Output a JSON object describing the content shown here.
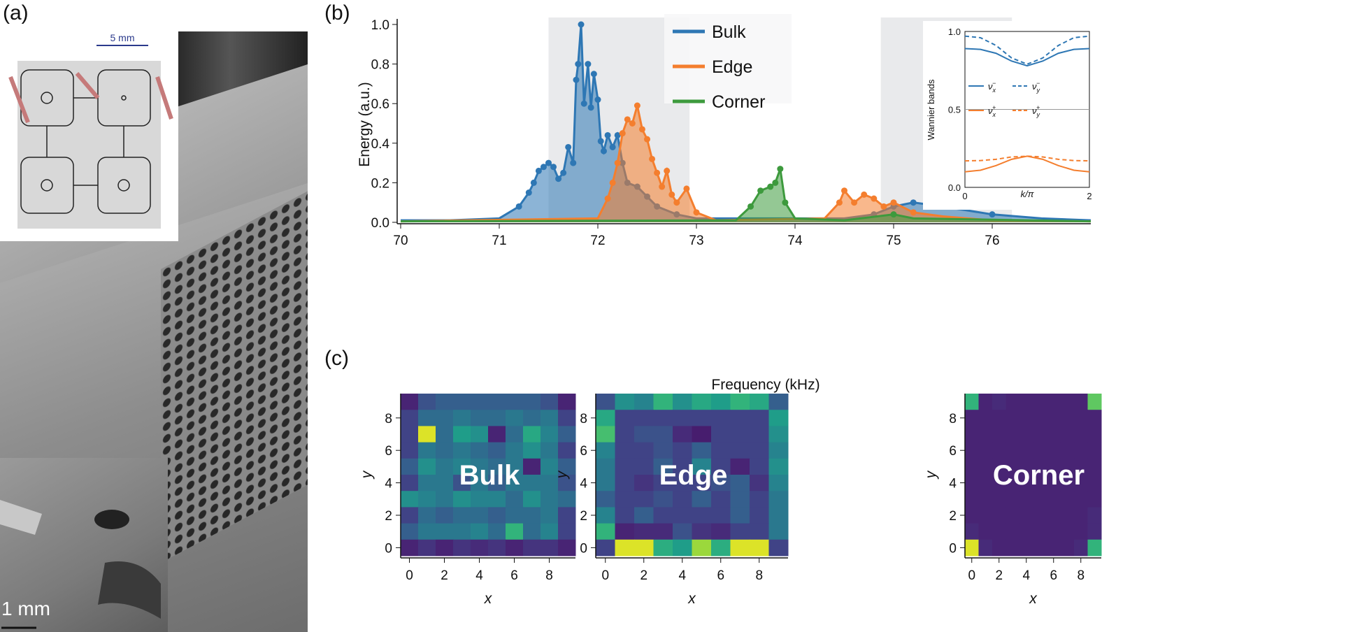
{
  "panels": {
    "a": {
      "label": "(a)",
      "scale_top": "5 mm",
      "scale_bottom": "1 mm"
    },
    "b": {
      "label": "(b)"
    },
    "c": {
      "label": "(c)"
    }
  },
  "colors": {
    "bulk": "#2e77b4",
    "edge": "#f47e2e",
    "corner": "#3d9a3d",
    "band_shade": "#e9eaec"
  },
  "chart_data": [
    {
      "type": "area",
      "xlabel": "Frequency (kHz)",
      "ylabel": "Energy (a.u.)",
      "xlim": [
        70,
        77
      ],
      "ylim": [
        0,
        1.0
      ],
      "xticks": [
        70,
        71,
        72,
        73,
        74,
        75,
        76
      ],
      "yticks": [
        0.0,
        0.2,
        0.4,
        0.6,
        0.8,
        1.0
      ],
      "shaded_bands": [
        [
          71.5,
          72.93
        ],
        [
          74.87,
          76.2
        ]
      ],
      "legend_placement": "top-center",
      "series": [
        {
          "name": "Bulk",
          "x": [
            70,
            70.5,
            71,
            71.2,
            71.3,
            71.35,
            71.4,
            71.45,
            71.5,
            71.55,
            71.6,
            71.65,
            71.7,
            71.75,
            71.78,
            71.8,
            71.83,
            71.86,
            71.9,
            71.93,
            71.96,
            72,
            72.03,
            72.06,
            72.1,
            72.15,
            72.2,
            72.25,
            72.3,
            72.4,
            72.5,
            72.6,
            72.8,
            73,
            74.5,
            74.8,
            75,
            75.2,
            75.5,
            76,
            76.5,
            77
          ],
          "y": [
            0.01,
            0.01,
            0.02,
            0.08,
            0.15,
            0.2,
            0.26,
            0.28,
            0.3,
            0.28,
            0.22,
            0.25,
            0.38,
            0.3,
            0.72,
            0.8,
            1.0,
            0.6,
            0.8,
            0.58,
            0.75,
            0.62,
            0.41,
            0.36,
            0.44,
            0.38,
            0.44,
            0.3,
            0.2,
            0.18,
            0.13,
            0.08,
            0.04,
            0.02,
            0.02,
            0.04,
            0.08,
            0.1,
            0.08,
            0.04,
            0.02,
            0.01
          ]
        },
        {
          "name": "Edge",
          "x": [
            70,
            72,
            72.1,
            72.15,
            72.2,
            72.25,
            72.3,
            72.35,
            72.4,
            72.45,
            72.5,
            72.55,
            72.6,
            72.65,
            72.7,
            72.75,
            72.8,
            72.9,
            73,
            73.2,
            74.3,
            74.45,
            74.5,
            74.6,
            74.7,
            74.8,
            74.9,
            75,
            75.2,
            75.5,
            76,
            77
          ],
          "y": [
            0.005,
            0.02,
            0.12,
            0.2,
            0.3,
            0.45,
            0.52,
            0.5,
            0.59,
            0.47,
            0.42,
            0.32,
            0.25,
            0.18,
            0.26,
            0.14,
            0.1,
            0.17,
            0.05,
            0.01,
            0.02,
            0.1,
            0.16,
            0.1,
            0.14,
            0.12,
            0.08,
            0.1,
            0.05,
            0.03,
            0.01,
            0.005
          ]
        },
        {
          "name": "Corner",
          "x": [
            70,
            73.4,
            73.55,
            73.65,
            73.75,
            73.8,
            73.85,
            73.9,
            74,
            74.5,
            75,
            75.2,
            77
          ],
          "y": [
            0.005,
            0.01,
            0.08,
            0.16,
            0.18,
            0.2,
            0.27,
            0.1,
            0.02,
            0.01,
            0.04,
            0.02,
            0.005
          ]
        }
      ]
    },
    {
      "type": "line",
      "ylabel": "Wannier bands",
      "xlabel": "k/π",
      "xlim": [
        0,
        2
      ],
      "ylim": [
        0,
        1
      ],
      "xticks": [
        "0",
        "2"
      ],
      "yticks": [
        "0.0",
        "0.5",
        "1.0"
      ],
      "reference_line": 0.5,
      "series": [
        {
          "name": "ν_x^−",
          "label_main": "ν",
          "sub": "x",
          "sup": "−",
          "color": "#2e77b4",
          "dash": false,
          "x": [
            0,
            0.25,
            0.5,
            0.75,
            1,
            1.25,
            1.5,
            1.75,
            2
          ],
          "y": [
            0.89,
            0.885,
            0.86,
            0.81,
            0.78,
            0.81,
            0.86,
            0.885,
            0.89
          ]
        },
        {
          "name": "ν_y^−",
          "label_main": "ν",
          "sub": "y",
          "sup": "−",
          "color": "#2e77b4",
          "dash": true,
          "x": [
            0,
            0.25,
            0.5,
            0.75,
            1,
            1.25,
            1.5,
            1.75,
            2
          ],
          "y": [
            0.97,
            0.96,
            0.91,
            0.83,
            0.79,
            0.83,
            0.91,
            0.96,
            0.97
          ]
        },
        {
          "name": "ν_x^+",
          "label_main": "ν",
          "sub": "x",
          "sup": "+",
          "color": "#f47e2e",
          "dash": false,
          "x": [
            0,
            0.25,
            0.5,
            0.75,
            1,
            1.25,
            1.5,
            1.75,
            2
          ],
          "y": [
            0.1,
            0.11,
            0.14,
            0.18,
            0.2,
            0.18,
            0.14,
            0.11,
            0.1
          ]
        },
        {
          "name": "ν_y^+",
          "label_main": "ν",
          "sub": "y",
          "sup": "+",
          "color": "#f47e2e",
          "dash": true,
          "x": [
            0,
            0.25,
            0.5,
            0.75,
            1,
            1.25,
            1.5,
            1.75,
            2
          ],
          "y": [
            0.17,
            0.172,
            0.18,
            0.195,
            0.2,
            0.195,
            0.18,
            0.172,
            0.17
          ]
        }
      ]
    },
    {
      "type": "heatmap",
      "title": "Bulk",
      "xlabel": "x",
      "ylabel": "y",
      "xticks": [
        0,
        2,
        4,
        6,
        8
      ],
      "yticks": [
        0,
        2,
        4,
        6,
        8
      ],
      "colormap": "viridis",
      "rows_top_to_bottom": [
        [
          0.1,
          0.25,
          0.3,
          0.3,
          0.3,
          0.3,
          0.3,
          0.3,
          0.25,
          0.1
        ],
        [
          0.2,
          0.35,
          0.35,
          0.4,
          0.35,
          0.35,
          0.4,
          0.35,
          0.4,
          0.2
        ],
        [
          0.2,
          0.95,
          0.35,
          0.55,
          0.5,
          0.1,
          0.35,
          0.6,
          0.45,
          0.3
        ],
        [
          0.2,
          0.4,
          0.35,
          0.4,
          0.35,
          0.3,
          0.4,
          0.5,
          0.4,
          0.2
        ],
        [
          0.3,
          0.5,
          0.4,
          0.45,
          0.4,
          0.35,
          0.4,
          0.1,
          0.45,
          0.3
        ],
        [
          0.2,
          0.4,
          0.4,
          0.25,
          0.4,
          0.3,
          0.4,
          0.4,
          0.4,
          0.25
        ],
        [
          0.5,
          0.45,
          0.4,
          0.5,
          0.45,
          0.45,
          0.35,
          0.5,
          0.4,
          0.35
        ],
        [
          0.2,
          0.35,
          0.3,
          0.35,
          0.35,
          0.3,
          0.35,
          0.35,
          0.4,
          0.2
        ],
        [
          0.3,
          0.4,
          0.4,
          0.4,
          0.45,
          0.35,
          0.65,
          0.35,
          0.45,
          0.2
        ],
        [
          0.1,
          0.15,
          0.1,
          0.15,
          0.12,
          0.15,
          0.1,
          0.15,
          0.15,
          0.1
        ]
      ]
    },
    {
      "type": "heatmap",
      "title": "Edge",
      "xlabel": "x",
      "ylabel": "y",
      "xticks": [
        0,
        2,
        4,
        6,
        8
      ],
      "yticks": [
        0,
        2,
        4,
        6,
        8
      ],
      "colormap": "viridis",
      "rows_top_to_bottom": [
        [
          0.25,
          0.5,
          0.45,
          0.65,
          0.5,
          0.6,
          0.55,
          0.65,
          0.6,
          0.3
        ],
        [
          0.6,
          0.2,
          0.2,
          0.2,
          0.2,
          0.2,
          0.2,
          0.2,
          0.2,
          0.55
        ],
        [
          0.7,
          0.2,
          0.25,
          0.25,
          0.12,
          0.08,
          0.2,
          0.2,
          0.2,
          0.5
        ],
        [
          0.45,
          0.2,
          0.2,
          0.25,
          0.2,
          0.3,
          0.2,
          0.2,
          0.2,
          0.45
        ],
        [
          0.4,
          0.2,
          0.2,
          0.3,
          0.2,
          0.45,
          0.2,
          0.1,
          0.2,
          0.5
        ],
        [
          0.4,
          0.2,
          0.15,
          0.2,
          0.2,
          0.2,
          0.25,
          0.3,
          0.15,
          0.45
        ],
        [
          0.3,
          0.2,
          0.2,
          0.25,
          0.2,
          0.3,
          0.2,
          0.3,
          0.2,
          0.4
        ],
        [
          0.45,
          0.2,
          0.3,
          0.2,
          0.2,
          0.2,
          0.2,
          0.3,
          0.2,
          0.4
        ],
        [
          0.65,
          0.1,
          0.12,
          0.12,
          0.25,
          0.15,
          0.12,
          0.2,
          0.2,
          0.4
        ],
        [
          0.2,
          0.95,
          0.95,
          0.62,
          0.55,
          0.85,
          0.62,
          0.95,
          0.95,
          0.2
        ]
      ]
    },
    {
      "type": "heatmap",
      "title": "Corner",
      "xlabel": "x",
      "ylabel": "y",
      "xticks": [
        0,
        2,
        4,
        6,
        8
      ],
      "yticks": [
        0,
        2,
        4,
        6,
        8
      ],
      "colormap": "viridis",
      "rows_top_to_bottom": [
        [
          0.65,
          0.1,
          0.12,
          0.1,
          0.1,
          0.1,
          0.1,
          0.1,
          0.1,
          0.75
        ],
        [
          0.1,
          0.1,
          0.1,
          0.1,
          0.1,
          0.1,
          0.1,
          0.1,
          0.1,
          0.1
        ],
        [
          0.1,
          0.1,
          0.1,
          0.1,
          0.1,
          0.1,
          0.1,
          0.1,
          0.1,
          0.1
        ],
        [
          0.1,
          0.1,
          0.1,
          0.1,
          0.1,
          0.1,
          0.1,
          0.1,
          0.1,
          0.1
        ],
        [
          0.1,
          0.1,
          0.1,
          0.1,
          0.1,
          0.1,
          0.1,
          0.1,
          0.1,
          0.1
        ],
        [
          0.1,
          0.1,
          0.1,
          0.1,
          0.1,
          0.1,
          0.1,
          0.1,
          0.1,
          0.1
        ],
        [
          0.1,
          0.1,
          0.1,
          0.1,
          0.1,
          0.1,
          0.1,
          0.1,
          0.1,
          0.1
        ],
        [
          0.1,
          0.1,
          0.1,
          0.1,
          0.1,
          0.1,
          0.1,
          0.1,
          0.1,
          0.12
        ],
        [
          0.12,
          0.1,
          0.1,
          0.1,
          0.1,
          0.1,
          0.1,
          0.1,
          0.1,
          0.12
        ],
        [
          0.95,
          0.12,
          0.1,
          0.1,
          0.1,
          0.1,
          0.1,
          0.1,
          0.12,
          0.65
        ]
      ]
    }
  ]
}
